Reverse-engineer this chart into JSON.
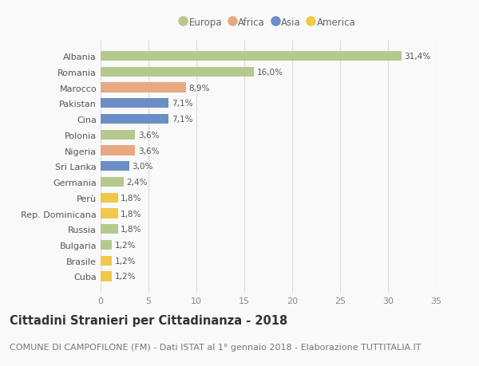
{
  "countries": [
    "Albania",
    "Romania",
    "Marocco",
    "Pakistan",
    "Cina",
    "Polonia",
    "Nigeria",
    "Sri Lanka",
    "Germania",
    "Perù",
    "Rep. Dominicana",
    "Russia",
    "Bulgaria",
    "Brasile",
    "Cuba"
  ],
  "values": [
    31.4,
    16.0,
    8.9,
    7.1,
    7.1,
    3.6,
    3.6,
    3.0,
    2.4,
    1.8,
    1.8,
    1.8,
    1.2,
    1.2,
    1.2
  ],
  "labels": [
    "31,4%",
    "16,0%",
    "8,9%",
    "7,1%",
    "7,1%",
    "3,6%",
    "3,6%",
    "3,0%",
    "2,4%",
    "1,8%",
    "1,8%",
    "1,8%",
    "1,2%",
    "1,2%",
    "1,2%"
  ],
  "continents": [
    "Europa",
    "Europa",
    "Africa",
    "Asia",
    "Asia",
    "Europa",
    "Africa",
    "Asia",
    "Europa",
    "America",
    "America",
    "Europa",
    "Europa",
    "America",
    "America"
  ],
  "continent_colors": {
    "Europa": "#b5c98e",
    "Africa": "#e8a882",
    "Asia": "#6b8ec4",
    "America": "#f0c84a"
  },
  "legend_order": [
    "Europa",
    "Africa",
    "Asia",
    "America"
  ],
  "title": "Cittadini Stranieri per Cittadinanza - 2018",
  "subtitle": "COMUNE DI CAMPOFILONE (FM) - Dati ISTAT al 1° gennaio 2018 - Elaborazione TUTTITALIA.IT",
  "xlim": [
    0,
    35
  ],
  "xticks": [
    0,
    5,
    10,
    15,
    20,
    25,
    30,
    35
  ],
  "background_color": "#f9f9f9",
  "grid_color": "#dddddd",
  "bar_height": 0.62,
  "title_fontsize": 10.5,
  "subtitle_fontsize": 8.0,
  "label_fontsize": 7.5,
  "tick_fontsize": 8.0,
  "legend_fontsize": 8.5
}
